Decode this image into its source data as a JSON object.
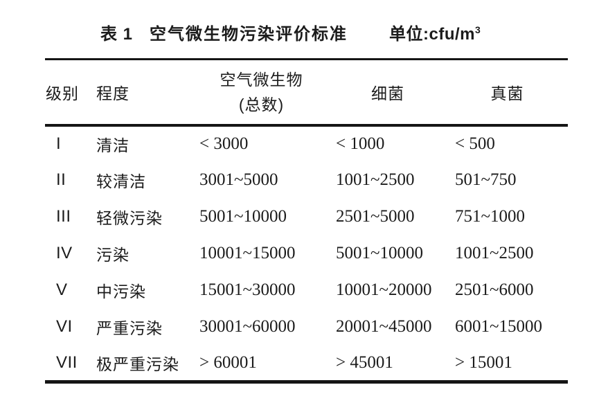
{
  "caption": {
    "table_no": "表 1",
    "title": "空气微生物污染评价标准",
    "unit_prefix": "单位:cfu/m",
    "unit_sup": "3"
  },
  "table": {
    "headers": {
      "level": "级别",
      "degree": "程度",
      "total_line1": "空气微生物",
      "total_line2": "(总数)",
      "bacteria": "细菌",
      "fungi": "真菌"
    },
    "rows": [
      {
        "level": "I",
        "degree": "清洁",
        "total": "< 3000",
        "bacteria": "< 1000",
        "fungi": "< 500"
      },
      {
        "level": "II",
        "degree": "较清洁",
        "total": "3001~5000",
        "bacteria": "1001~2500",
        "fungi": "501~750"
      },
      {
        "level": "III",
        "degree": "轻微污染",
        "total": "5001~10000",
        "bacteria": "2501~5000",
        "fungi": "751~1000"
      },
      {
        "level": "IV",
        "degree": "污染",
        "total": "10001~15000",
        "bacteria": "5001~10000",
        "fungi": "1001~2500"
      },
      {
        "level": "V",
        "degree": "中污染",
        "total": "15001~30000",
        "bacteria": "10001~20000",
        "fungi": "2501~6000"
      },
      {
        "level": "VI",
        "degree": "严重污染",
        "total": "30001~60000",
        "bacteria": "20001~45000",
        "fungi": "6001~15000"
      },
      {
        "level": "VII",
        "degree": "极严重污染",
        "total": "> 60001",
        "bacteria": "> 45001",
        "fungi": "> 15001"
      }
    ]
  },
  "colors": {
    "background": "#ffffff",
    "text": "#1b1b1b",
    "rule": "#151515"
  }
}
